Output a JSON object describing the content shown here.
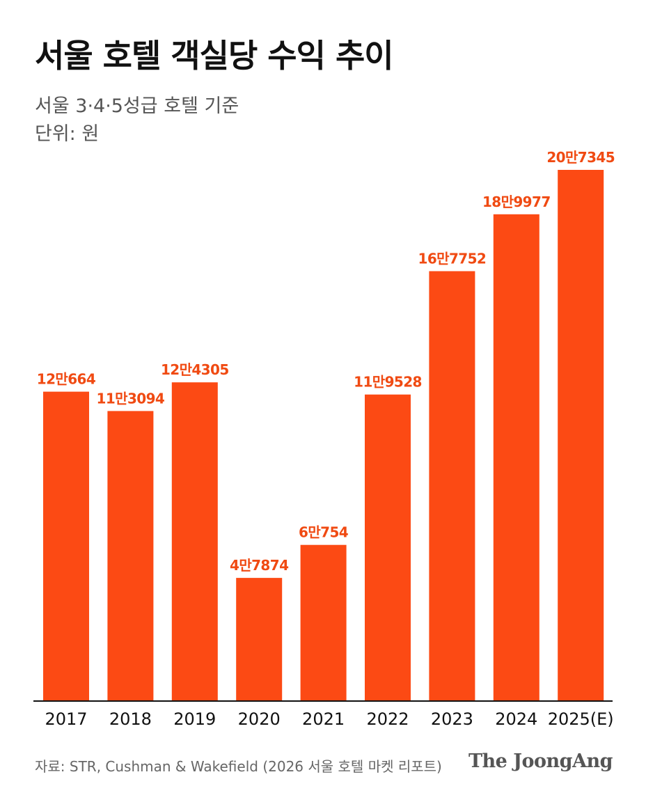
{
  "header": {
    "title": "서울 호텔 객실당 수익 추이",
    "subtitle": "서울 3·4·5성급 호텔 기준",
    "unit": "단위: 원"
  },
  "footer": {
    "source": "자료: STR, Cushman & Wakefield (2026 서울 호텔 마켓 리포트)",
    "brand": "The JoongAng"
  },
  "colors": {
    "bar": "#fc4a14",
    "label": "#f04a12",
    "axis": "#111111"
  },
  "chart_data": {
    "type": "bar",
    "title": "서울 호텔 객실당 수익 추이",
    "subtitle": "서울 3·4·5성급 호텔 기준",
    "unit": "원",
    "categories": [
      "2017",
      "2018",
      "2019",
      "2020",
      "2021",
      "2022",
      "2023",
      "2024",
      "2025(E)"
    ],
    "values": [
      120664,
      113094,
      124305,
      47874,
      60754,
      119528,
      167752,
      189977,
      207345
    ],
    "value_labels": [
      "12만664",
      "11만3094",
      "12만4305",
      "4만7874",
      "6만754",
      "11만9528",
      "16만7752",
      "18만9977",
      "20만7345"
    ],
    "ylim": [
      0,
      207345
    ],
    "grid": false,
    "legend": "none"
  }
}
